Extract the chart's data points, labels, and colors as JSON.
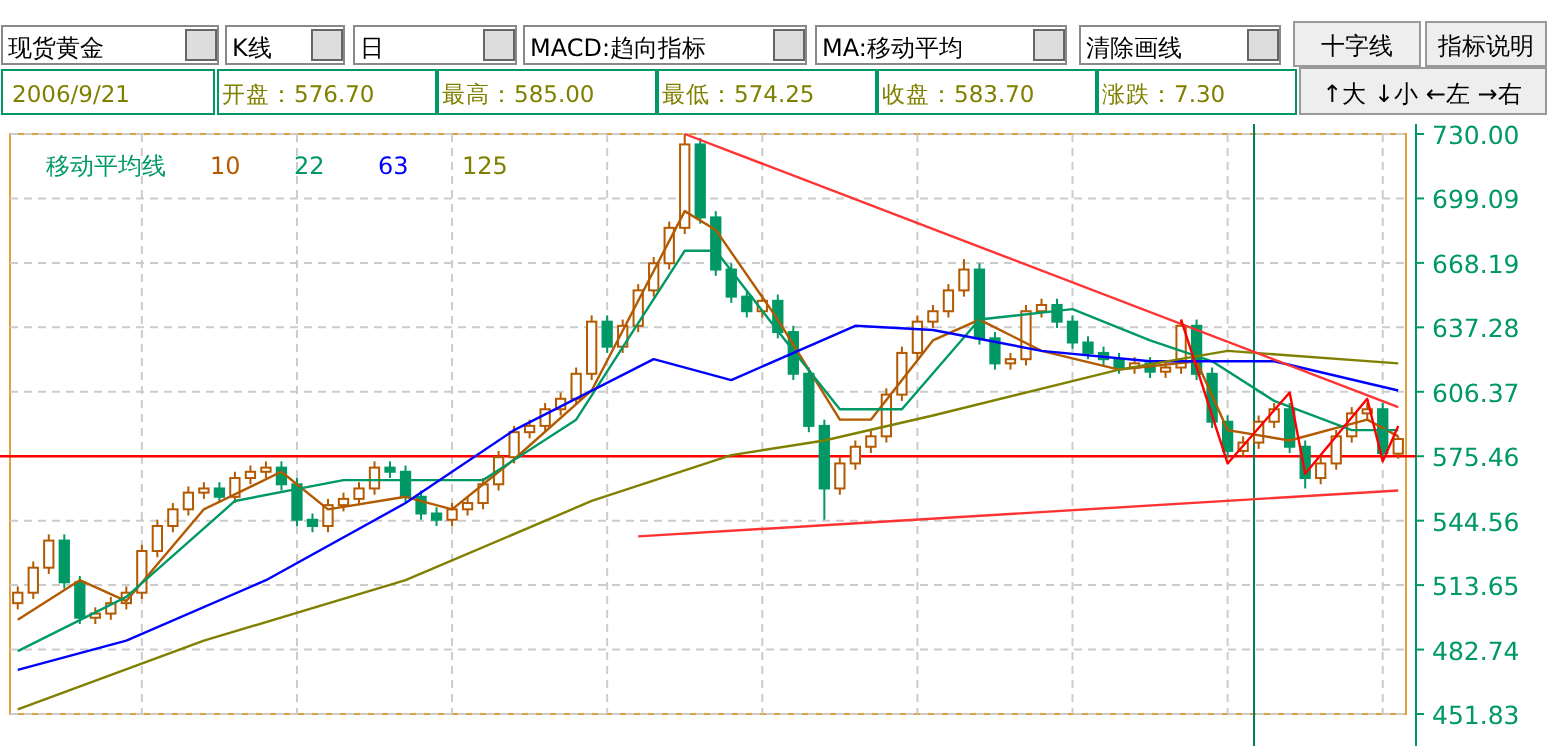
{
  "chart_data": {
    "type": "candlestick",
    "title": "现货黄金",
    "annotations": [
      "K线",
      "日",
      "MACD:趋向指标",
      "MA:移动平均",
      "清除画线",
      "十字线",
      "指标说明",
      "2006/9/21",
      "开盘：576.70",
      "最高：585.00",
      "最低：574.25",
      "收盘：583.70",
      "涨跌：7.30",
      "↑大 ↓小 ←左 →右"
    ],
    "categories": [
      null,
      null,
      null,
      null,
      null,
      null,
      null,
      null,
      null,
      null,
      null,
      null,
      null,
      null,
      null,
      null,
      null,
      null,
      null,
      null,
      null,
      null,
      null,
      null,
      null,
      null,
      null,
      null,
      null,
      null,
      null,
      null,
      null,
      null,
      null,
      null,
      null,
      null,
      null,
      null,
      null,
      null,
      null,
      null,
      null,
      null,
      null,
      null,
      null,
      null,
      null,
      null,
      null,
      null,
      null,
      null,
      null,
      null,
      null,
      null,
      null,
      null,
      null,
      null,
      null,
      null,
      null,
      null,
      null,
      null,
      null,
      null,
      null,
      null,
      null,
      null,
      null,
      null,
      null,
      null,
      null,
      null,
      null,
      null,
      null,
      null,
      null,
      null,
      null,
      null
    ],
    "ohlc": [
      [
        505,
        513,
        502,
        510
      ],
      [
        510,
        525,
        507,
        522
      ],
      [
        522,
        538,
        519,
        535
      ],
      [
        535,
        538,
        512,
        515
      ],
      [
        515,
        518,
        495,
        498
      ],
      [
        498,
        503,
        495,
        500
      ],
      [
        500,
        508,
        497,
        505
      ],
      [
        505,
        513,
        502,
        510
      ],
      [
        510,
        533,
        507,
        530
      ],
      [
        530,
        545,
        527,
        542
      ],
      [
        542,
        553,
        539,
        550
      ],
      [
        550,
        561,
        547,
        558
      ],
      [
        558,
        563,
        555,
        560
      ],
      [
        560,
        563,
        553,
        556
      ],
      [
        556,
        568,
        553,
        565
      ],
      [
        565,
        571,
        562,
        568
      ],
      [
        568,
        573,
        565,
        570
      ],
      [
        570,
        573,
        559,
        562
      ],
      [
        562,
        565,
        542,
        545
      ],
      [
        545,
        548,
        539,
        542
      ],
      [
        542,
        555,
        539,
        552
      ],
      [
        552,
        558,
        549,
        555
      ],
      [
        555,
        563,
        552,
        560
      ],
      [
        560,
        573,
        557,
        570
      ],
      [
        570,
        573,
        565,
        568
      ],
      [
        568,
        571,
        553,
        556
      ],
      [
        556,
        559,
        545,
        548
      ],
      [
        548,
        551,
        542,
        545
      ],
      [
        545,
        553,
        542,
        550
      ],
      [
        550,
        556,
        547,
        553
      ],
      [
        553,
        565,
        550,
        562
      ],
      [
        562,
        578,
        559,
        575
      ],
      [
        575,
        590,
        572,
        587
      ],
      [
        587,
        593,
        584,
        590
      ],
      [
        590,
        601,
        587,
        598
      ],
      [
        598,
        606,
        595,
        603
      ],
      [
        603,
        618,
        600,
        615
      ],
      [
        615,
        643,
        612,
        640
      ],
      [
        640,
        643,
        625,
        628
      ],
      [
        628,
        641,
        625,
        638
      ],
      [
        638,
        658,
        635,
        655
      ],
      [
        655,
        671,
        652,
        668
      ],
      [
        668,
        688,
        665,
        685
      ],
      [
        685,
        730,
        682,
        725
      ],
      [
        725,
        728,
        687,
        690
      ],
      [
        690,
        693,
        662,
        665
      ],
      [
        665,
        668,
        649,
        652
      ],
      [
        652,
        655,
        642,
        645
      ],
      [
        645,
        653,
        642,
        650
      ],
      [
        650,
        653,
        632,
        635
      ],
      [
        635,
        638,
        612,
        615
      ],
      [
        615,
        618,
        587,
        590
      ],
      [
        590,
        593,
        545,
        560
      ],
      [
        560,
        575,
        557,
        572
      ],
      [
        572,
        583,
        569,
        580
      ],
      [
        580,
        588,
        577,
        585
      ],
      [
        585,
        608,
        582,
        605
      ],
      [
        605,
        628,
        602,
        625
      ],
      [
        625,
        643,
        622,
        640
      ],
      [
        640,
        648,
        637,
        645
      ],
      [
        645,
        658,
        642,
        655
      ],
      [
        655,
        670,
        652,
        665
      ],
      [
        665,
        668,
        629,
        632
      ],
      [
        632,
        635,
        617,
        620
      ],
      [
        620,
        625,
        617,
        622
      ],
      [
        622,
        648,
        619,
        645
      ],
      [
        645,
        651,
        642,
        648
      ],
      [
        648,
        651,
        637,
        640
      ],
      [
        640,
        643,
        627,
        630
      ],
      [
        630,
        633,
        622,
        625
      ],
      [
        625,
        628,
        619,
        622
      ],
      [
        622,
        625,
        615,
        618
      ],
      [
        618,
        623,
        615,
        620
      ],
      [
        620,
        623,
        613,
        616
      ],
      [
        616,
        621,
        613,
        618
      ],
      [
        618,
        641,
        615,
        638
      ],
      [
        638,
        641,
        612,
        615
      ],
      [
        615,
        618,
        589,
        592
      ],
      [
        592,
        595,
        575,
        578
      ],
      [
        578,
        585,
        575,
        582
      ],
      [
        582,
        595,
        579,
        592
      ],
      [
        592,
        601,
        589,
        598
      ],
      [
        598,
        601,
        577,
        580
      ],
      [
        580,
        583,
        560,
        565
      ],
      [
        565,
        575,
        562,
        572
      ],
      [
        572,
        588,
        569,
        585
      ],
      [
        585,
        599,
        582,
        596
      ],
      [
        596,
        601,
        593,
        598
      ],
      [
        598,
        601,
        574,
        577
      ],
      [
        576.7,
        585,
        574.25,
        583.7
      ]
    ],
    "legend_title": "移动平均线",
    "legend": "top left",
    "series": [
      {
        "type": "line",
        "name": "10",
        "color": "#b35a00",
        "values": [
          497,
          null,
          null,
          null,
          516,
          null,
          null,
          506,
          null,
          null,
          null,
          null,
          550,
          null,
          null,
          null,
          null,
          568,
          null,
          null,
          550,
          null,
          null,
          null,
          null,
          556,
          null,
          null,
          550,
          null,
          null,
          null,
          574,
          null,
          null,
          null,
          null,
          607,
          null,
          null,
          null,
          null,
          null,
          693,
          null,
          684,
          null,
          null,
          null,
          641,
          null,
          null,
          null,
          593,
          null,
          593,
          null,
          null,
          null,
          631,
          null,
          null,
          641,
          null,
          null,
          null,
          626,
          null,
          null,
          null,
          null,
          617,
          null,
          null,
          null,
          null,
          621,
          null,
          588,
          null,
          null,
          null,
          583,
          null,
          null,
          null,
          null,
          593,
          null,
          585
        ]
      },
      {
        "type": "line",
        "name": "22",
        "color": "#009966",
        "values": [
          482,
          null,
          null,
          null,
          null,
          null,
          null,
          508,
          null,
          null,
          null,
          null,
          null,
          null,
          554,
          null,
          null,
          null,
          null,
          null,
          null,
          564,
          null,
          null,
          null,
          null,
          null,
          null,
          null,
          null,
          564,
          null,
          null,
          null,
          null,
          null,
          593,
          null,
          null,
          null,
          null,
          null,
          null,
          674,
          null,
          674,
          null,
          null,
          null,
          null,
          626,
          null,
          null,
          598,
          null,
          null,
          null,
          598,
          null,
          null,
          null,
          null,
          641,
          null,
          null,
          null,
          null,
          null,
          646,
          null,
          null,
          null,
          null,
          631,
          null,
          null,
          null,
          621,
          null,
          null,
          null,
          602,
          null,
          null,
          null,
          null,
          588,
          null,
          null,
          588
        ]
      },
      {
        "type": "line",
        "name": "63",
        "color": "#0000ff",
        "values": [
          473,
          null,
          null,
          null,
          null,
          null,
          null,
          487,
          null,
          null,
          null,
          null,
          null,
          null,
          null,
          null,
          516,
          null,
          null,
          null,
          null,
          null,
          null,
          null,
          null,
          553,
          null,
          null,
          null,
          null,
          null,
          null,
          588,
          null,
          null,
          null,
          null,
          null,
          null,
          null,
          null,
          622,
          null,
          null,
          null,
          null,
          612,
          null,
          null,
          null,
          null,
          null,
          null,
          null,
          638,
          null,
          null,
          null,
          null,
          636,
          null,
          null,
          null,
          null,
          null,
          null,
          626,
          null,
          null,
          null,
          null,
          null,
          null,
          621,
          null,
          null,
          null,
          null,
          null,
          null,
          null,
          621,
          null,
          null,
          null,
          null,
          null,
          null,
          null,
          607
        ]
      },
      {
        "type": "line",
        "name": "125",
        "color": "#808000",
        "values": [
          454,
          null,
          null,
          null,
          null,
          null,
          null,
          null,
          null,
          null,
          null,
          null,
          487,
          null,
          null,
          null,
          null,
          null,
          null,
          null,
          null,
          null,
          null,
          null,
          null,
          516,
          null,
          null,
          null,
          null,
          null,
          null,
          null,
          null,
          null,
          null,
          null,
          554,
          null,
          null,
          null,
          null,
          null,
          null,
          null,
          null,
          576,
          null,
          null,
          null,
          null,
          null,
          583,
          null,
          null,
          null,
          null,
          null,
          null,
          595,
          null,
          null,
          null,
          null,
          null,
          null,
          null,
          null,
          null,
          null,
          null,
          617,
          null,
          null,
          null,
          null,
          null,
          null,
          626,
          null,
          null,
          null,
          null,
          null,
          null,
          null,
          null,
          null,
          null,
          620
        ]
      },
      {
        "type": "line",
        "color": "#ff3333",
        "values": [
          null,
          null,
          null,
          null,
          null,
          null,
          null,
          null,
          null,
          null,
          null,
          null,
          null,
          null,
          null,
          null,
          null,
          null,
          null,
          null,
          null,
          null,
          null,
          null,
          null,
          null,
          null,
          null,
          null,
          null,
          null,
          null,
          null,
          null,
          null,
          null,
          null,
          null,
          null,
          null,
          null,
          null,
          null,
          730,
          null,
          null,
          null,
          null,
          null,
          null,
          null,
          null,
          null,
          null,
          null,
          null,
          null,
          null,
          null,
          null,
          null,
          null,
          null,
          null,
          null,
          null,
          null,
          null,
          null,
          null,
          null,
          null,
          null,
          null,
          null,
          null,
          null,
          null,
          null,
          null,
          null,
          null,
          null,
          null,
          null,
          null,
          null,
          null,
          null,
          599
        ]
      },
      {
        "type": "line",
        "color": "#ff3333",
        "values": [
          null,
          null,
          null,
          null,
          null,
          null,
          null,
          null,
          null,
          null,
          null,
          null,
          null,
          null,
          null,
          null,
          null,
          null,
          null,
          null,
          null,
          null,
          null,
          null,
          null,
          null,
          null,
          null,
          null,
          null,
          null,
          null,
          null,
          null,
          null,
          null,
          null,
          null,
          null,
          null,
          537,
          null,
          null,
          null,
          null,
          null,
          null,
          null,
          null,
          null,
          null,
          null,
          null,
          null,
          null,
          null,
          null,
          null,
          null,
          null,
          null,
          null,
          null,
          null,
          null,
          null,
          null,
          null,
          null,
          null,
          null,
          null,
          null,
          null,
          null,
          null,
          null,
          null,
          null,
          null,
          null,
          null,
          null,
          null,
          null,
          null,
          null,
          null,
          null,
          559
        ]
      },
      {
        "type": "line",
        "color": "#ff0000",
        "values": [
          null,
          null,
          null,
          null,
          null,
          null,
          null,
          null,
          null,
          null,
          null,
          null,
          null,
          null,
          null,
          null,
          null,
          null,
          null,
          null,
          null,
          null,
          null,
          null,
          null,
          null,
          null,
          null,
          null,
          null,
          null,
          null,
          null,
          null,
          null,
          null,
          null,
          null,
          null,
          null,
          null,
          null,
          null,
          null,
          null,
          null,
          null,
          null,
          null,
          null,
          null,
          null,
          null,
          null,
          null,
          null,
          null,
          null,
          null,
          null,
          null,
          null,
          null,
          null,
          null,
          null,
          null,
          null,
          null,
          null,
          null,
          null,
          null,
          null,
          null,
          641,
          null,
          null,
          572,
          null,
          null,
          null,
          606,
          567,
          null,
          null,
          null,
          603,
          573,
          590
        ]
      }
    ],
    "ref_lines": [
      {
        "axis": "y",
        "value": 575.46,
        "color": "#ff0000"
      }
    ],
    "ylim": [
      451.83,
      730
    ],
    "yticks": [
      {
        "value": 730,
        "label": "730.00"
      },
      699.09,
      668.19,
      637.28,
      606.37,
      575.46,
      544.56,
      513.65,
      482.74,
      451.83
    ],
    "grid": true
  }
}
